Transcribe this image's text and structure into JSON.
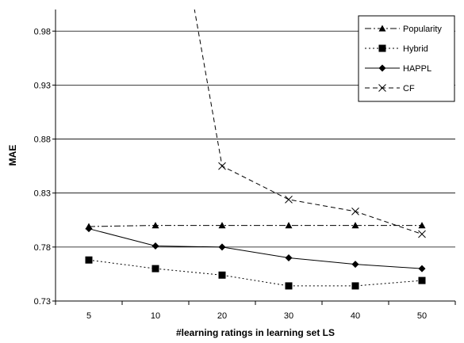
{
  "chart_data": {
    "type": "line",
    "title": "",
    "xlabel": "#learning ratings in learning set LS",
    "ylabel": "MAE",
    "categories": [
      "5",
      "10",
      "20",
      "30",
      "40",
      "50"
    ],
    "ylim": [
      0.73,
      1.0
    ],
    "yticks": [
      "0.73",
      "0.78",
      "0.83",
      "0.88",
      "0.93",
      "0.98"
    ],
    "ytick_values": [
      0.73,
      0.78,
      0.83,
      0.88,
      0.93,
      0.98
    ],
    "grid": "horizontal",
    "legend_position": "top-right",
    "series": [
      {
        "name": "Popularity",
        "values": [
          0.799,
          0.8,
          0.8,
          0.8,
          0.8,
          0.8
        ],
        "line_style": "dash-dot",
        "marker": "triangle"
      },
      {
        "name": "Hybrid",
        "values": [
          0.768,
          0.76,
          0.754,
          0.744,
          0.744,
          0.749
        ],
        "line_style": "dotted",
        "marker": "square"
      },
      {
        "name": "HAPPL",
        "values": [
          0.797,
          0.781,
          0.78,
          0.77,
          0.764,
          0.76
        ],
        "line_style": "solid",
        "marker": "diamond"
      },
      {
        "name": "CF",
        "values": [
          null,
          null,
          0.855,
          0.824,
          0.813,
          0.792
        ],
        "line_style": "dashed",
        "marker": "x",
        "offscale_start": {
          "x_index": 1.5,
          "y": 1.03
        }
      }
    ]
  }
}
